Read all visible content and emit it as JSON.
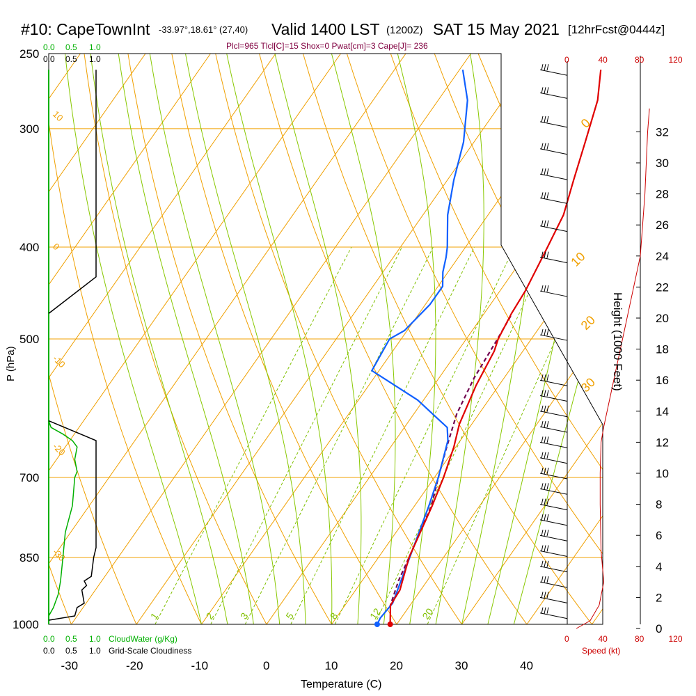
{
  "header": {
    "station": "#10: CapeTownInt",
    "location": "-33.97°,18.61° (27,40)",
    "valid": "Valid 1400 LST",
    "utc": "(1200Z)",
    "date": "SAT 15 May 2021",
    "forecast": "[12hrFcst@0444z]",
    "params": "Plcl=965 Tlcl[C]=15 Shox=0 Pwat[cm]=3 Cape[J]= 236"
  },
  "colors": {
    "isotherm": "#f0a000",
    "dry_adiabat": "#88c800",
    "mixing_ratio": "#80c000",
    "temperature": "#e00000",
    "dewpoint": "#1060ff",
    "parcel": "#700050",
    "cloudwater": "#00b000",
    "cloudiness": "#000000",
    "wind_speed": "#cc0000",
    "params_text": "#800040"
  },
  "chart_data": {
    "type": "line",
    "skew_t": true,
    "xlabel": "Temperature (C)",
    "ylabel": "P (hPa)",
    "y2label": "Height (1000 Feet)",
    "x_ticks": [
      "-30",
      "-20",
      "-10",
      "0",
      "10",
      "20",
      "30",
      "40"
    ],
    "x_tick_values": [
      -30,
      -20,
      -10,
      0,
      10,
      20,
      30,
      40
    ],
    "p_ticks": [
      "250",
      "300",
      "400",
      "500",
      "700",
      "850",
      "1000"
    ],
    "p_tick_values": [
      250,
      300,
      400,
      500,
      700,
      850,
      1000
    ],
    "height_ticks": [
      "0",
      "2",
      "4",
      "6",
      "8",
      "10",
      "12",
      "14",
      "16",
      "18",
      "20",
      "22",
      "24",
      "26",
      "28",
      "30",
      "32"
    ],
    "height_tick_values": [
      0,
      2,
      4,
      6,
      8,
      10,
      12,
      14,
      16,
      18,
      20,
      22,
      24,
      26,
      28,
      30,
      32
    ],
    "isotherm_labels": [
      "0",
      "10",
      "20",
      "30"
    ],
    "mixing_ratio_labels": [
      "1",
      "2",
      "3",
      "5",
      "8",
      "12",
      "20"
    ],
    "adiabat_labels": [
      "10",
      "0",
      "-10",
      "-20",
      "-30"
    ],
    "temperature_profile": {
      "name": "Temperature",
      "points": [
        [
          19,
          1000
        ],
        [
          17,
          955
        ],
        [
          16.8,
          920
        ],
        [
          14.7,
          850
        ],
        [
          12.7,
          750
        ],
        [
          11.4,
          700
        ],
        [
          9.7,
          650
        ],
        [
          8.1,
          615
        ],
        [
          6.5,
          560
        ],
        [
          5.6,
          515
        ],
        [
          4.9,
          500
        ],
        [
          4.2,
          470
        ],
        [
          3.9,
          445
        ],
        [
          3.2,
          420
        ],
        [
          2.6,
          400
        ],
        [
          1.6,
          370
        ],
        [
          -0.6,
          340
        ],
        [
          -2.9,
          310
        ],
        [
          -5.5,
          280
        ],
        [
          -8.3,
          260
        ]
      ]
    },
    "dewpoint_profile": {
      "name": "Dewpoint",
      "points": [
        [
          17,
          1000
        ],
        [
          16.8,
          985
        ],
        [
          17.1,
          950
        ],
        [
          14.8,
          850
        ],
        [
          12.2,
          750
        ],
        [
          10.6,
          700
        ],
        [
          8.1,
          640
        ],
        [
          6.6,
          620
        ],
        [
          -0.9,
          580
        ],
        [
          -11.1,
          540
        ],
        [
          -11.8,
          500
        ],
        [
          -10.4,
          490
        ],
        [
          -9.3,
          460
        ],
        [
          -9.3,
          440
        ],
        [
          -10.8,
          425
        ],
        [
          -11.9,
          410
        ],
        [
          -12.8,
          400
        ],
        [
          -16.2,
          370
        ],
        [
          -19,
          340
        ],
        [
          -21.6,
          310
        ],
        [
          -25.5,
          280
        ],
        [
          -29.5,
          260
        ]
      ]
    },
    "parcel_profile": {
      "name": "Parcel",
      "points": [
        [
          17.1,
          960
        ],
        [
          15.6,
          900
        ],
        [
          14.7,
          850
        ],
        [
          12.6,
          750
        ],
        [
          10.6,
          700
        ],
        [
          8.6,
          650
        ],
        [
          6.6,
          600
        ],
        [
          5.4,
          550
        ],
        [
          4.8,
          500
        ],
        [
          4.3,
          470
        ]
      ]
    },
    "cloudwater": {
      "label": "CloudWater (g/Kg)",
      "ticks": [
        "0.0",
        "0.5",
        "1.0"
      ],
      "points": [
        [
          0,
          1000
        ],
        [
          0,
          980
        ],
        [
          0.1,
          960
        ],
        [
          0.2,
          930
        ],
        [
          0.25,
          900
        ],
        [
          0.3,
          850
        ],
        [
          0.35,
          800
        ],
        [
          0.5,
          750
        ],
        [
          0.55,
          700
        ],
        [
          0.6,
          690
        ],
        [
          0.55,
          670
        ],
        [
          0.6,
          650
        ],
        [
          0.5,
          640
        ],
        [
          0.3,
          630
        ],
        [
          0.05,
          620
        ],
        [
          0,
          610
        ]
      ]
    },
    "cloudiness": {
      "label": "Grid-Scale Cloudiness",
      "ticks": [
        "0.0",
        "0.5",
        "1.0"
      ],
      "points": [
        [
          0,
          990
        ],
        [
          0.55,
          980
        ],
        [
          0.6,
          960
        ],
        [
          0.75,
          950
        ],
        [
          0.7,
          920
        ],
        [
          0.8,
          910
        ],
        [
          0.75,
          900
        ],
        [
          0.9,
          890
        ],
        [
          0.95,
          850
        ],
        [
          1.0,
          830
        ],
        [
          1.0,
          640
        ],
        [
          0,
          610
        ]
      ],
      "upper_points": [
        [
          0,
          470
        ],
        [
          1.0,
          430
        ],
        [
          1.0,
          260
        ]
      ]
    },
    "wind_speed": {
      "label": "Speed (kt)",
      "ticks": [
        "0",
        "40",
        "80",
        "120"
      ],
      "tick_values": [
        0,
        40,
        80,
        120
      ],
      "points": [
        [
          10,
          0
        ],
        [
          25,
          0.5
        ],
        [
          35,
          1.5
        ],
        [
          40,
          3
        ],
        [
          37,
          5
        ],
        [
          36,
          8
        ],
        [
          36,
          10
        ],
        [
          37,
          12
        ],
        [
          40,
          13
        ],
        [
          80,
          24
        ],
        [
          85,
          28
        ],
        [
          88,
          32
        ],
        [
          90,
          33.5
        ]
      ]
    },
    "wind_barbs": {
      "upper_pressures": [
        260,
        275,
        295,
        315,
        335,
        355,
        380,
        410,
        445,
        495
      ],
      "lower_heights_kft": [
        1,
        2,
        3,
        4,
        5,
        6,
        7,
        8,
        9,
        10,
        11,
        12,
        13,
        14,
        15,
        16
      ]
    }
  }
}
